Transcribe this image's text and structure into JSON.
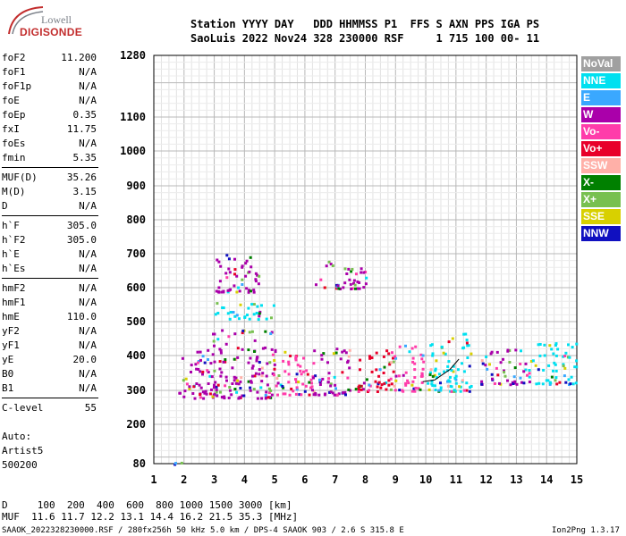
{
  "logo": {
    "line1": "Lowell",
    "line2": "DIGISONDE"
  },
  "header": {
    "labels": "Station YYYY DAY   DDD HHMMSS P1  FFS S AXN PPS IGA PS",
    "values": "SaoLuis 2022 Nov24 328 230000 RSF     1 715 100 00- 11"
  },
  "params": [
    {
      "k": "foF2",
      "v": "11.200"
    },
    {
      "k": "foF1",
      "v": "N/A"
    },
    {
      "k": "foF1p",
      "v": "N/A"
    },
    {
      "k": "foE",
      "v": "N/A"
    },
    {
      "k": "foEp",
      "v": "0.35"
    },
    {
      "k": "fxI",
      "v": "11.75"
    },
    {
      "k": "foEs",
      "v": "N/A"
    },
    {
      "k": "fmin",
      "v": "5.35"
    },
    {
      "k": "MUF(D)",
      "v": "35.26"
    },
    {
      "k": "M(D)",
      "v": "3.15"
    },
    {
      "k": "D",
      "v": "N/A"
    },
    {
      "k": "h`F",
      "v": "305.0"
    },
    {
      "k": "h`F2",
      "v": "305.0"
    },
    {
      "k": "h`E",
      "v": "N/A"
    },
    {
      "k": "h`Es",
      "v": "N/A"
    },
    {
      "k": "hmF2",
      "v": "N/A"
    },
    {
      "k": "hmF1",
      "v": "N/A"
    },
    {
      "k": "hmE",
      "v": "110.0"
    },
    {
      "k": "yF2",
      "v": "N/A"
    },
    {
      "k": "yF1",
      "v": "N/A"
    },
    {
      "k": "yE",
      "v": "20.0"
    },
    {
      "k": "B0",
      "v": "N/A"
    },
    {
      "k": "B1",
      "v": "N/A"
    },
    {
      "k": "C-level",
      "v": "55"
    }
  ],
  "auto": {
    "line1": "Auto:",
    "line2": "Artist5",
    "line3": "500200"
  },
  "legend": [
    {
      "label": "NoVal",
      "color": "#a0a0a0"
    },
    {
      "label": "NNE",
      "color": "#00e0f0"
    },
    {
      "label": "E",
      "color": "#3aa8ff"
    },
    {
      "label": "W",
      "color": "#aa00aa"
    },
    {
      "label": "Vo-",
      "color": "#ff3caa"
    },
    {
      "label": "Vo+",
      "color": "#e8002a"
    },
    {
      "label": "SSW",
      "color": "#ffb0a8"
    },
    {
      "label": "X-",
      "color": "#008000"
    },
    {
      "label": "X+",
      "color": "#78c050"
    },
    {
      "label": "SSE",
      "color": "#d8d000"
    },
    {
      "label": "NNW",
      "color": "#1010c0"
    }
  ],
  "footer": {
    "d_row": "D     100  200  400  600  800 1000 1500 3000 [km]",
    "muf_row": "MUF  11.6 11.7 12.2 13.1 14.4 16.2 21.5 35.3 [MHz]",
    "file_info": "SAAOK_2022328230000.RSF / 280fx256h 50 kHz 5.0 km / DPS-4 SAAOK 903 / 2.6 S 315.8 E",
    "version": "Ion2Png 1.3.17"
  },
  "chart_data": {
    "type": "scatter",
    "xlim": [
      1,
      15
    ],
    "ylim": [
      80,
      1280
    ],
    "y_scale": "nonlinear (virtual height)",
    "x_ticks": [
      1,
      2,
      3,
      4,
      5,
      6,
      7,
      8,
      9,
      10,
      11,
      12,
      13,
      14,
      15
    ],
    "y_ticks": [
      80,
      200,
      300,
      400,
      500,
      600,
      700,
      800,
      900,
      1000,
      1100,
      1280
    ],
    "grid": true,
    "legend_position": "right",
    "trace_clusters": [
      {
        "x_range": [
          1.0,
          2.0
        ],
        "h_range": [
          80,
          90
        ],
        "color": "#3aa8ff"
      },
      {
        "x_range": [
          1.8,
          3.0
        ],
        "h_range": [
          280,
          420
        ],
        "color": "#aa00aa"
      },
      {
        "x_range": [
          2.9,
          5.0
        ],
        "h_range": [
          280,
          480
        ],
        "color": "#aa00aa"
      },
      {
        "x_range": [
          3.0,
          5.0
        ],
        "h_range": [
          510,
          560
        ],
        "color": "#00e0f0"
      },
      {
        "x_range": [
          3.0,
          4.5
        ],
        "h_range": [
          590,
          700
        ],
        "color": "#aa00aa"
      },
      {
        "x_range": [
          4.9,
          6.3
        ],
        "h_range": [
          290,
          420
        ],
        "color": "#ff3caa"
      },
      {
        "x_range": [
          6.2,
          7.5
        ],
        "h_range": [
          290,
          430
        ],
        "color": "#aa00aa"
      },
      {
        "x_range": [
          6.3,
          8.0
        ],
        "h_range": [
          600,
          680
        ],
        "color": "#aa00aa"
      },
      {
        "x_range": [
          7.6,
          8.9
        ],
        "h_range": [
          300,
          420
        ],
        "color": "#e8002a"
      },
      {
        "x_range": [
          8.8,
          9.9
        ],
        "h_range": [
          300,
          440
        ],
        "color": "#ff3caa"
      },
      {
        "x_range": [
          10.0,
          11.5
        ],
        "h_range": [
          300,
          470
        ],
        "color": "#00e0f0"
      },
      {
        "x_range": [
          11.8,
          13.5
        ],
        "h_range": [
          320,
          420
        ],
        "color": "#aa00aa"
      },
      {
        "x_range": [
          13.5,
          15.0
        ],
        "h_range": [
          320,
          440
        ],
        "color": "#00e0f0"
      }
    ],
    "profile_line": [
      [
        9.9,
        325
      ],
      [
        10.3,
        330
      ],
      [
        10.8,
        360
      ],
      [
        11.1,
        390
      ]
    ]
  }
}
